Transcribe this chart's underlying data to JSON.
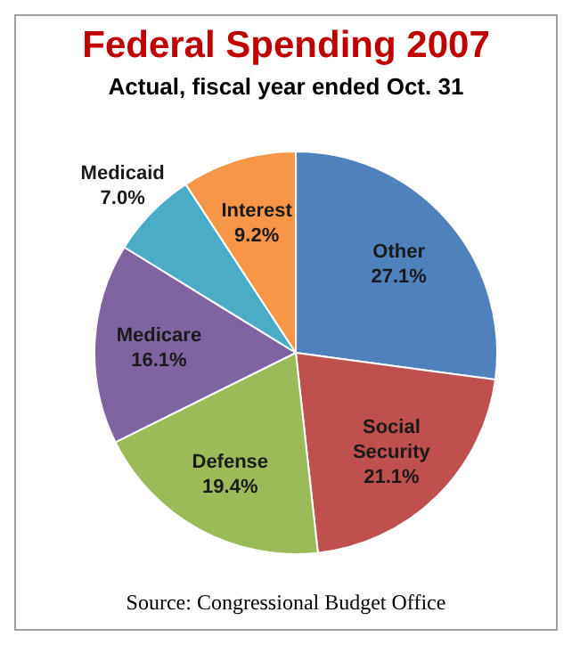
{
  "chart_data": {
    "type": "pie",
    "title": "Federal Spending 2007",
    "subtitle": "Actual, fiscal year ended Oct. 31",
    "categories": [
      "Other",
      "Social Security",
      "Defense",
      "Medicare",
      "Medicaid",
      "Interest"
    ],
    "values": [
      27.1,
      21.1,
      19.4,
      16.1,
      7.0,
      9.2
    ],
    "colors": [
      "#4f81bd",
      "#c0504d",
      "#9bbb59",
      "#8064a2",
      "#4bacc6",
      "#f79646"
    ],
    "value_labels": [
      "27.1%",
      "21.1%",
      "19.4%",
      "16.1%",
      "7.0%",
      "9.2%"
    ],
    "annotations": [
      "Source:  Congressional Budget Office"
    ]
  }
}
